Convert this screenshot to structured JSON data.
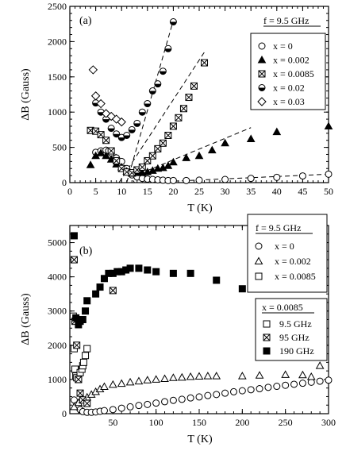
{
  "chart_data": [
    {
      "type": "scatter",
      "panel_label": "(a)",
      "xlabel": "T (K)",
      "ylabel": "ΔB (Gauss)",
      "xlim": [
        0,
        50
      ],
      "ylim": [
        0,
        2500
      ],
      "xticks": [
        0,
        5,
        10,
        15,
        20,
        25,
        30,
        35,
        40,
        45,
        50
      ],
      "yticks": [
        0,
        500,
        1000,
        1500,
        2000,
        2500
      ],
      "legend_title": "f = 9.5 GHz",
      "legend_position": "top-right",
      "series": [
        {
          "name": "x = 0",
          "marker": "open-circle",
          "x": [
            5,
            6,
            7,
            7.5,
            8,
            9,
            10,
            11,
            12,
            13,
            14,
            15,
            16,
            17,
            18,
            19,
            20,
            22.5,
            25,
            30,
            35,
            40,
            45,
            50
          ],
          "y": [
            430,
            450,
            460,
            450,
            420,
            350,
            300,
            200,
            110,
            80,
            60,
            50,
            45,
            40,
            35,
            30,
            30,
            30,
            35,
            45,
            60,
            75,
            95,
            120
          ]
        },
        {
          "name": "x = 0.002",
          "marker": "filled-triangle",
          "x": [
            4,
            5,
            6,
            7,
            8,
            9,
            10,
            11,
            12,
            13,
            14,
            15,
            16,
            17,
            18,
            19,
            20,
            22.5,
            25,
            27.5,
            30,
            35,
            40,
            50
          ],
          "y": [
            250,
            380,
            420,
            380,
            330,
            260,
            220,
            160,
            130,
            140,
            140,
            150,
            170,
            200,
            210,
            240,
            290,
            350,
            380,
            460,
            560,
            620,
            720,
            800
          ]
        },
        {
          "name": "x = 0.0085",
          "marker": "crossed-square",
          "x": [
            4,
            5,
            6,
            7,
            8,
            9,
            10,
            11,
            12,
            13,
            14,
            15,
            16,
            17,
            18,
            19,
            20,
            21,
            22,
            23,
            24,
            26
          ],
          "y": [
            740,
            730,
            680,
            600,
            450,
            310,
            200,
            150,
            140,
            180,
            220,
            310,
            380,
            480,
            560,
            670,
            800,
            920,
            1050,
            1210,
            1370,
            1700
          ]
        },
        {
          "name": "x = 0.02",
          "marker": "half-filled-circle",
          "x": [
            5,
            6,
            7,
            8,
            9,
            10,
            11,
            12,
            13,
            14,
            15,
            16,
            17,
            18,
            19,
            20
          ],
          "y": [
            1130,
            1000,
            900,
            770,
            690,
            640,
            670,
            750,
            840,
            1000,
            1120,
            1300,
            1400,
            1580,
            1900,
            2280
          ]
        },
        {
          "name": "x = 0.03",
          "marker": "open-diamond",
          "x": [
            4.5,
            5,
            6,
            7,
            8,
            9,
            10
          ],
          "y": [
            1600,
            1230,
            1120,
            980,
            940,
            900,
            860
          ]
        }
      ]
    },
    {
      "type": "scatter",
      "panel_label": "(b)",
      "xlabel": "T (K)",
      "ylabel": "ΔB (Gauss)",
      "xlim": [
        0,
        300
      ],
      "ylim": [
        0,
        5500
      ],
      "xticks": [
        50,
        100,
        150,
        200,
        250,
        300
      ],
      "yticks": [
        0,
        1000,
        2000,
        3000,
        4000,
        5000
      ],
      "legends": [
        {
          "title": "f = 9.5 GHz",
          "position": "top-right",
          "entries": [
            {
              "name": "x = 0",
              "marker": "open-circle"
            },
            {
              "name": "x = 0.002",
              "marker": "open-triangle"
            },
            {
              "name": "x = 0.0085",
              "marker": "open-square"
            }
          ]
        },
        {
          "title": "x = 0.0085",
          "position": "right",
          "entries": [
            {
              "name": "9.5 GHz",
              "marker": "open-square"
            },
            {
              "name": "95 GHz",
              "marker": "crossed-square"
            },
            {
              "name": "190 GHz",
              "marker": "filled-square"
            }
          ]
        }
      ],
      "series": [
        {
          "name": "x = 0",
          "marker": "open-circle",
          "x": [
            5,
            8,
            10,
            12,
            15,
            20,
            25,
            30,
            35,
            40,
            50,
            60,
            70,
            80,
            90,
            100,
            110,
            120,
            130,
            140,
            150,
            160,
            170,
            180,
            190,
            200,
            210,
            220,
            230,
            240,
            250,
            260,
            270,
            280,
            290,
            300
          ],
          "y": [
            400,
            250,
            180,
            120,
            60,
            40,
            40,
            50,
            70,
            90,
            120,
            160,
            200,
            240,
            270,
            310,
            350,
            390,
            420,
            460,
            490,
            530,
            560,
            600,
            640,
            670,
            700,
            730,
            770,
            800,
            830,
            860,
            890,
            920,
            950,
            980
          ]
        },
        {
          "name": "x = 0.002",
          "marker": "open-triangle",
          "x": [
            5,
            10,
            15,
            20,
            25,
            30,
            35,
            40,
            50,
            60,
            70,
            80,
            90,
            100,
            110,
            120,
            130,
            140,
            150,
            160,
            170,
            200,
            220,
            250,
            270,
            280,
            290
          ],
          "y": [
            200,
            320,
            400,
            480,
            560,
            640,
            720,
            790,
            850,
            880,
            920,
            950,
            980,
            1000,
            1020,
            1050,
            1060,
            1080,
            1090,
            1100,
            1100,
            1100,
            1120,
            1140,
            1130,
            1080,
            1400
          ]
        },
        {
          "name": "x = 0.0085 (9.5 GHz)",
          "marker": "open-square",
          "x": [
            4,
            5,
            6,
            7,
            8,
            10,
            12,
            14,
            15,
            16,
            18,
            20
          ],
          "y": [
            2850,
            1900,
            1300,
            1100,
            1050,
            1000,
            1200,
            1300,
            1400,
            1500,
            1700,
            1900
          ]
        },
        {
          "name": "x = 0.0085 (95 GHz)",
          "marker": "crossed-square",
          "x": [
            5,
            6,
            8,
            10,
            12,
            15,
            20,
            50
          ],
          "y": [
            4500,
            2700,
            2000,
            1000,
            600,
            400,
            300,
            3600
          ]
        },
        {
          "name": "x = 0.0085 (190 GHz)",
          "marker": "filled-square",
          "x": [
            5,
            7,
            10,
            12,
            15,
            18,
            20,
            30,
            35,
            40,
            45,
            50,
            55,
            60,
            65,
            70,
            80,
            90,
            100,
            120,
            140,
            170,
            200,
            250
          ],
          "y": [
            5200,
            2800,
            2600,
            2700,
            2750,
            3000,
            3300,
            3500,
            3700,
            3950,
            4100,
            4100,
            4150,
            4150,
            4200,
            4250,
            4250,
            4200,
            4150,
            4100,
            4100,
            3900,
            3650,
            3900
          ]
        }
      ]
    }
  ]
}
